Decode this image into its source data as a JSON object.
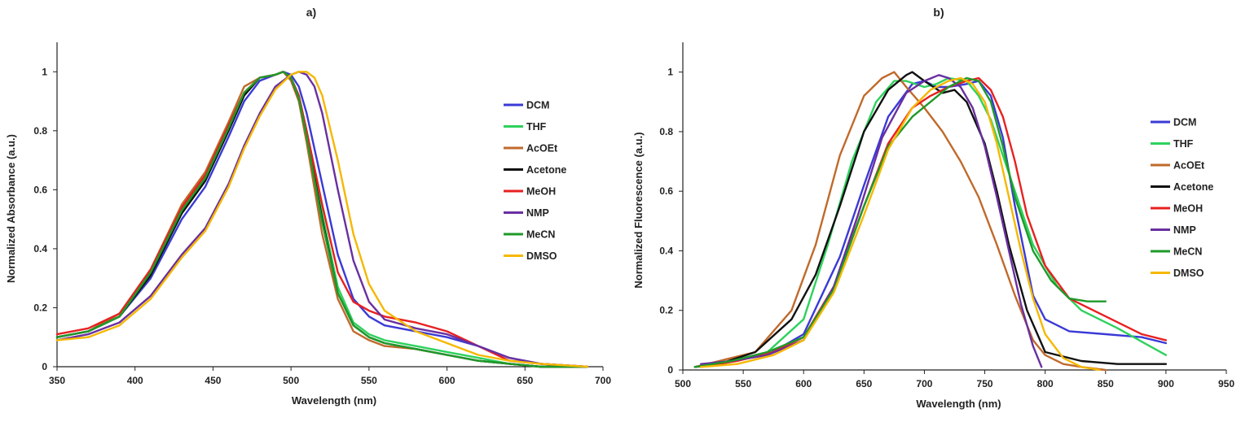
{
  "chart_data": [
    {
      "panel": "a)",
      "type": "line",
      "title": "a)",
      "xlabel": "Wavelength (nm)",
      "ylabel": "Normalized Absorbance (a.u.)",
      "xlim": [
        350,
        700
      ],
      "ylim": [
        0,
        1.1
      ],
      "xticks": [
        350,
        400,
        450,
        500,
        550,
        600,
        650,
        700
      ],
      "yticks": [
        0,
        0.2,
        0.4,
        0.6,
        0.8,
        1
      ],
      "xtick_labels": [
        "350",
        "400",
        "450",
        "500",
        "550",
        "600",
        "650",
        "700"
      ],
      "ytick_labels": [
        "0",
        "0.2",
        "0.4",
        "0.6",
        "0.8",
        "1"
      ],
      "grid": false,
      "legend_position": "right",
      "series": [
        {
          "name": "DCM",
          "color": "#3a3ad6",
          "x": [
            350,
            370,
            390,
            410,
            430,
            445,
            460,
            470,
            480,
            490,
            495,
            500,
            505,
            510,
            520,
            530,
            540,
            550,
            560,
            580,
            600,
            620,
            640,
            660,
            690
          ],
          "y": [
            0.1,
            0.12,
            0.17,
            0.3,
            0.5,
            0.61,
            0.78,
            0.9,
            0.97,
            0.99,
            1.0,
            0.99,
            0.95,
            0.86,
            0.62,
            0.38,
            0.23,
            0.17,
            0.14,
            0.12,
            0.1,
            0.07,
            0.03,
            0.01,
            0.0
          ]
        },
        {
          "name": "THF",
          "color": "#2ed15c",
          "x": [
            350,
            370,
            390,
            410,
            430,
            445,
            460,
            470,
            480,
            490,
            495,
            500,
            505,
            510,
            520,
            530,
            540,
            550,
            560,
            580,
            600,
            620,
            640,
            660,
            690
          ],
          "y": [
            0.1,
            0.12,
            0.17,
            0.31,
            0.52,
            0.63,
            0.8,
            0.92,
            0.98,
            0.99,
            1.0,
            0.98,
            0.92,
            0.8,
            0.52,
            0.27,
            0.15,
            0.11,
            0.09,
            0.07,
            0.05,
            0.03,
            0.01,
            0.0,
            0.0
          ]
        },
        {
          "name": "AcOEt",
          "color": "#c06a2b",
          "x": [
            350,
            370,
            390,
            410,
            430,
            445,
            460,
            470,
            480,
            490,
            495,
            500,
            505,
            510,
            520,
            530,
            540,
            550,
            560,
            580,
            600,
            620,
            640,
            660,
            690
          ],
          "y": [
            0.1,
            0.12,
            0.18,
            0.33,
            0.55,
            0.66,
            0.83,
            0.95,
            0.98,
            0.99,
            1.0,
            0.97,
            0.9,
            0.76,
            0.45,
            0.23,
            0.12,
            0.09,
            0.07,
            0.06,
            0.04,
            0.02,
            0.01,
            0.0,
            0.0
          ]
        },
        {
          "name": "Acetone",
          "color": "#111111",
          "x": [
            350,
            370,
            390,
            410,
            430,
            445,
            460,
            470,
            480,
            490,
            495,
            500,
            505,
            510,
            520,
            530,
            540,
            550,
            560,
            580,
            600,
            620,
            640,
            660,
            690
          ],
          "y": [
            0.1,
            0.12,
            0.17,
            0.31,
            0.52,
            0.63,
            0.8,
            0.92,
            0.98,
            0.99,
            1.0,
            0.98,
            0.91,
            0.79,
            0.5,
            0.25,
            0.14,
            0.1,
            0.08,
            0.06,
            0.04,
            0.02,
            0.01,
            0.0,
            0.0
          ]
        },
        {
          "name": "MeOH",
          "color": "#e82020",
          "x": [
            350,
            370,
            390,
            410,
            430,
            445,
            460,
            470,
            480,
            490,
            495,
            500,
            505,
            510,
            520,
            530,
            540,
            550,
            560,
            580,
            600,
            620,
            640,
            660,
            690
          ],
          "y": [
            0.11,
            0.13,
            0.18,
            0.33,
            0.54,
            0.65,
            0.82,
            0.93,
            0.98,
            0.99,
            1.0,
            0.98,
            0.92,
            0.8,
            0.55,
            0.32,
            0.22,
            0.19,
            0.17,
            0.15,
            0.12,
            0.07,
            0.02,
            0.01,
            0.0
          ]
        },
        {
          "name": "NMP",
          "color": "#6a2fa0",
          "x": [
            350,
            370,
            390,
            410,
            430,
            445,
            460,
            470,
            480,
            490,
            500,
            505,
            510,
            515,
            520,
            530,
            540,
            550,
            560,
            580,
            600,
            620,
            640,
            660,
            690
          ],
          "y": [
            0.09,
            0.11,
            0.15,
            0.24,
            0.38,
            0.47,
            0.62,
            0.75,
            0.86,
            0.95,
            0.99,
            1.0,
            0.99,
            0.95,
            0.86,
            0.6,
            0.36,
            0.22,
            0.16,
            0.13,
            0.11,
            0.07,
            0.03,
            0.01,
            0.0
          ]
        },
        {
          "name": "MeCN",
          "color": "#1e9a2a",
          "x": [
            350,
            370,
            390,
            410,
            430,
            445,
            460,
            470,
            480,
            490,
            495,
            500,
            505,
            510,
            520,
            530,
            540,
            550,
            560,
            580,
            600,
            620,
            640,
            660,
            690
          ],
          "y": [
            0.1,
            0.12,
            0.17,
            0.32,
            0.53,
            0.64,
            0.81,
            0.93,
            0.98,
            0.99,
            1.0,
            0.98,
            0.91,
            0.78,
            0.49,
            0.25,
            0.14,
            0.1,
            0.08,
            0.06,
            0.04,
            0.02,
            0.01,
            0.0,
            0.0
          ]
        },
        {
          "name": "DMSO",
          "color": "#f5b800",
          "x": [
            350,
            370,
            390,
            410,
            430,
            445,
            460,
            470,
            480,
            490,
            500,
            505,
            510,
            515,
            520,
            530,
            540,
            550,
            560,
            580,
            600,
            620,
            640,
            660,
            690
          ],
          "y": [
            0.09,
            0.1,
            0.14,
            0.23,
            0.37,
            0.46,
            0.61,
            0.74,
            0.85,
            0.94,
            0.99,
            1.0,
            1.0,
            0.98,
            0.92,
            0.7,
            0.45,
            0.28,
            0.19,
            0.12,
            0.08,
            0.04,
            0.02,
            0.01,
            0.0
          ]
        }
      ]
    },
    {
      "panel": "b)",
      "type": "line",
      "title": "b)",
      "xlabel": "Wavelength (nm)",
      "ylabel": "Normalized Fluorescence (a.u.)",
      "xlim": [
        500,
        950
      ],
      "ylim": [
        0,
        1.1
      ],
      "xticks": [
        500,
        550,
        600,
        650,
        700,
        750,
        800,
        850,
        900,
        950
      ],
      "yticks": [
        0,
        0.2,
        0.4,
        0.6,
        0.8,
        1
      ],
      "xtick_labels": [
        "500",
        "550",
        "600",
        "650",
        "700",
        "750",
        "800",
        "850",
        "900",
        "950"
      ],
      "ytick_labels": [
        "0",
        "0.2",
        "0.4",
        "0.6",
        "0.8",
        "1"
      ],
      "grid": false,
      "legend_position": "right",
      "series": [
        {
          "name": "DCM",
          "color": "#3a3ad6",
          "x": [
            515,
            540,
            570,
            600,
            630,
            650,
            670,
            690,
            700,
            710,
            720,
            735,
            745,
            755,
            765,
            775,
            790,
            800,
            820,
            850,
            880,
            900
          ],
          "y": [
            0.01,
            0.03,
            0.05,
            0.12,
            0.38,
            0.62,
            0.85,
            0.96,
            0.97,
            0.95,
            0.95,
            0.96,
            0.97,
            0.92,
            0.78,
            0.55,
            0.25,
            0.17,
            0.13,
            0.12,
            0.11,
            0.09
          ]
        },
        {
          "name": "THF",
          "color": "#2ed15c",
          "x": [
            510,
            540,
            570,
            600,
            620,
            640,
            660,
            675,
            685,
            700,
            710,
            720,
            735,
            745,
            755,
            765,
            775,
            790,
            810,
            830,
            860,
            900
          ],
          "y": [
            0.01,
            0.03,
            0.06,
            0.17,
            0.42,
            0.7,
            0.9,
            0.97,
            0.97,
            0.95,
            0.96,
            0.98,
            0.97,
            0.92,
            0.84,
            0.72,
            0.6,
            0.42,
            0.28,
            0.2,
            0.14,
            0.05
          ]
        },
        {
          "name": "AcOEt",
          "color": "#c06a2b",
          "x": [
            510,
            530,
            560,
            590,
            610,
            630,
            650,
            665,
            675,
            685,
            700,
            715,
            730,
            745,
            760,
            775,
            790,
            800,
            815,
            830,
            850
          ],
          "y": [
            0.01,
            0.03,
            0.06,
            0.2,
            0.42,
            0.72,
            0.92,
            0.98,
            1.0,
            0.95,
            0.88,
            0.8,
            0.7,
            0.58,
            0.42,
            0.25,
            0.1,
            0.05,
            0.02,
            0.01,
            0.0
          ]
        },
        {
          "name": "Acetone",
          "color": "#111111",
          "x": [
            510,
            530,
            560,
            590,
            610,
            630,
            650,
            670,
            685,
            690,
            700,
            715,
            725,
            735,
            750,
            760,
            770,
            785,
            800,
            830,
            860,
            900
          ],
          "y": [
            0.01,
            0.02,
            0.06,
            0.17,
            0.32,
            0.55,
            0.8,
            0.94,
            0.99,
            1.0,
            0.97,
            0.93,
            0.94,
            0.9,
            0.76,
            0.6,
            0.42,
            0.2,
            0.06,
            0.03,
            0.02,
            0.02
          ]
        },
        {
          "name": "MeOH",
          "color": "#e82020",
          "x": [
            515,
            545,
            575,
            600,
            625,
            650,
            670,
            690,
            705,
            720,
            735,
            745,
            755,
            765,
            775,
            785,
            800,
            820,
            850,
            880,
            900
          ],
          "y": [
            0.01,
            0.03,
            0.06,
            0.11,
            0.28,
            0.55,
            0.76,
            0.88,
            0.92,
            0.95,
            0.97,
            0.98,
            0.94,
            0.85,
            0.7,
            0.52,
            0.35,
            0.24,
            0.18,
            0.12,
            0.1
          ]
        },
        {
          "name": "NMP",
          "color": "#6a2fa0",
          "x": [
            515,
            540,
            570,
            600,
            625,
            645,
            665,
            685,
            700,
            712,
            720,
            730,
            740,
            750,
            760,
            770,
            780,
            790,
            797
          ],
          "y": [
            0.02,
            0.03,
            0.05,
            0.1,
            0.28,
            0.52,
            0.78,
            0.93,
            0.97,
            0.99,
            0.98,
            0.95,
            0.88,
            0.75,
            0.58,
            0.4,
            0.22,
            0.08,
            0.01
          ]
        },
        {
          "name": "MeCN",
          "color": "#1e9a2a",
          "x": [
            510,
            540,
            570,
            600,
            625,
            650,
            670,
            690,
            705,
            720,
            735,
            745,
            755,
            765,
            775,
            790,
            805,
            820,
            835,
            850
          ],
          "y": [
            0.01,
            0.03,
            0.06,
            0.11,
            0.27,
            0.55,
            0.75,
            0.85,
            0.9,
            0.95,
            0.98,
            0.97,
            0.9,
            0.75,
            0.58,
            0.4,
            0.3,
            0.24,
            0.23,
            0.23
          ]
        },
        {
          "name": "DMSO",
          "color": "#f5b800",
          "x": [
            515,
            545,
            575,
            600,
            625,
            650,
            670,
            690,
            705,
            720,
            730,
            740,
            750,
            760,
            770,
            780,
            790,
            800,
            815,
            830,
            845
          ],
          "y": [
            0.01,
            0.02,
            0.05,
            0.1,
            0.26,
            0.52,
            0.74,
            0.88,
            0.94,
            0.97,
            0.98,
            0.96,
            0.9,
            0.76,
            0.58,
            0.4,
            0.24,
            0.12,
            0.04,
            0.01,
            0.0
          ]
        }
      ]
    }
  ]
}
